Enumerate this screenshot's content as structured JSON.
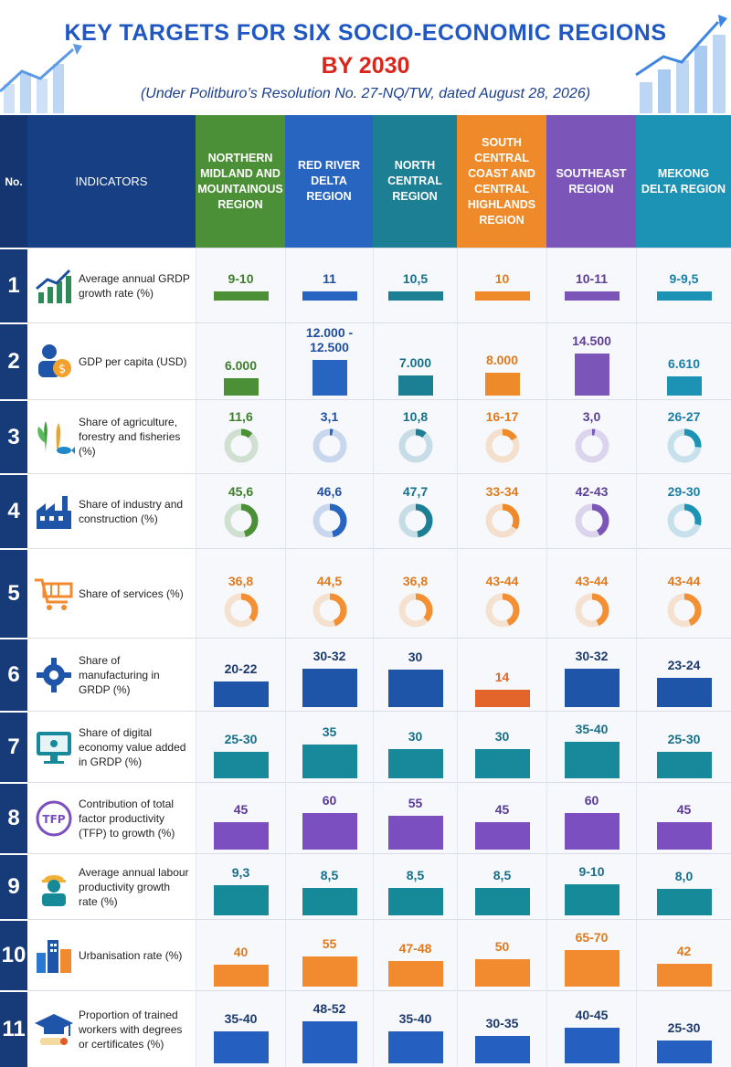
{
  "header": {
    "title": "KEY TARGETS FOR SIX SOCIO-ECONOMIC REGIONS",
    "subtitle": "BY 2030",
    "note": "(Under Politburo’s Resolution No. 27-NQ/TW, dated August 28, 2026)"
  },
  "table": {
    "no_label": "No.",
    "indicators_label": "INDICATORS"
  },
  "regions": [
    {
      "name": "NORTHERN MIDLAND AND MOUNTAINOUS REGION",
      "color": "#4b8f36",
      "value_color": "#3d7f2a"
    },
    {
      "name": "RED RIVER DELTA REGION",
      "color": "#2765c1",
      "value_color": "#1f4f9e"
    },
    {
      "name": "NORTH CENTRAL REGION",
      "color": "#1c7f94",
      "value_color": "#17708a"
    },
    {
      "name": "SOUTH CENTRAL COAST AND CENTRAL HIGHLANDS REGION",
      "color": "#ef8a2a",
      "value_color": "#e07a1c"
    },
    {
      "name": "SOUTHEAST REGION",
      "color": "#7b55b7",
      "value_color": "#5e3f98"
    },
    {
      "name": "MEKONG DELTA REGION",
      "color": "#1c92b5",
      "value_color": "#1a7fa6"
    }
  ],
  "rows": [
    {
      "no": "1",
      "icon": "growth-chart-icon",
      "label": "Average annual GRDP growth rate (%)",
      "type": "thinbar",
      "values": [
        "9-10",
        "11",
        "10,5",
        "10",
        "10-11",
        "9-9,5"
      ]
    },
    {
      "no": "2",
      "icon": "person-coin-icon",
      "label": "GDP per capita (USD)",
      "type": "bar",
      "values": [
        "6.000",
        "12.000 - 12.500",
        "7.000",
        "8.000",
        "14.500",
        "6.610"
      ],
      "numeric": [
        6000,
        12250,
        7000,
        8000,
        14500,
        6610
      ]
    },
    {
      "no": "3",
      "icon": "agriculture-fish-icon",
      "label": "Share of agriculture, forestry and fisheries (%)",
      "type": "donut",
      "values": [
        "11,6",
        "3,1",
        "10,8",
        "16-17",
        "3,0",
        "26-27"
      ],
      "numeric": [
        11.6,
        3.1,
        10.8,
        16.5,
        3.0,
        26.5
      ]
    },
    {
      "no": "4",
      "icon": "factory-icon",
      "label": "Share of industry and construction (%)",
      "type": "donut",
      "values": [
        "45,6",
        "46,6",
        "47,7",
        "33-34",
        "42-43",
        "29-30"
      ],
      "numeric": [
        45.6,
        46.6,
        47.7,
        33.5,
        42.5,
        29.5
      ]
    },
    {
      "no": "5",
      "icon": "shopping-cart-icon",
      "label": "Share of services (%)",
      "type": "donut",
      "values": [
        "36,8",
        "44,5",
        "36,8",
        "43-44",
        "43-44",
        "43-44"
      ],
      "numeric": [
        36.8,
        44.5,
        36.8,
        43.5,
        43.5,
        43.5
      ]
    },
    {
      "no": "6",
      "icon": "gear-icon",
      "label": "Share of manufacturing in GRDP (%)",
      "type": "bar",
      "values": [
        "20-22",
        "30-32",
        "30",
        "14",
        "30-32",
        "23-24"
      ],
      "numeric": [
        21,
        31,
        30,
        14,
        31,
        23.5
      ]
    },
    {
      "no": "7",
      "icon": "digital-monitor-icon",
      "label": "Share of digital economy value added in GRDP (%)",
      "type": "bar",
      "values": [
        "25-30",
        "35",
        "30",
        "30",
        "35-40",
        "25-30"
      ],
      "numeric": [
        27.5,
        35,
        30,
        30,
        37.5,
        27.5
      ]
    },
    {
      "no": "8",
      "icon": "tfp-icon",
      "label": "Contribution of total factor productivity (TFP) to growth (%)",
      "type": "bar",
      "values": [
        "45",
        "60",
        "55",
        "45",
        "60",
        "45"
      ],
      "numeric": [
        45,
        60,
        55,
        45,
        60,
        45
      ]
    },
    {
      "no": "9",
      "icon": "worker-icon",
      "label": "Average annual labour productivity growth rate (%)",
      "type": "bar",
      "values": [
        "9,3",
        "8,5",
        "8,5",
        "8,5",
        "9-10",
        "8,0"
      ],
      "numeric": [
        9.3,
        8.5,
        8.5,
        8.5,
        9.5,
        8.0
      ]
    },
    {
      "no": "10",
      "icon": "city-buildings-icon",
      "label": "Urbanisation rate (%)",
      "type": "bar",
      "values": [
        "40",
        "55",
        "47-48",
        "50",
        "65-70",
        "42"
      ],
      "numeric": [
        40,
        55,
        47.5,
        50,
        67.5,
        42
      ]
    },
    {
      "no": "11",
      "icon": "graduation-cap-icon",
      "label": "Proportion of trained workers with degrees or certificates (%)",
      "type": "bar",
      "values": [
        "35-40",
        "48-52",
        "35-40",
        "30-35",
        "40-45",
        "25-30"
      ],
      "numeric": [
        37.5,
        50,
        37.5,
        32.5,
        42.5,
        27.5
      ]
    }
  ],
  "row_colors": {
    "6": [
      "#1f55a8",
      "#1f55a8",
      "#1f55a8",
      "#e2642a",
      "#1f55a8",
      "#1f55a8"
    ],
    "7": [
      "#17899a",
      "#17899a",
      "#17899a",
      "#17899a",
      "#17899a",
      "#17899a"
    ],
    "8": [
      "#7b4fbf",
      "#7b4fbf",
      "#7b4fbf",
      "#7b4fbf",
      "#7b4fbf",
      "#7b4fbf"
    ],
    "9": [
      "#178a9a",
      "#178a9a",
      "#178a9a",
      "#178a9a",
      "#178a9a",
      "#178a9a"
    ],
    "10": [
      "#f28a30",
      "#f28a30",
      "#f28a30",
      "#f28a30",
      "#f28a30",
      "#f28a30"
    ],
    "11": [
      "#2560c0",
      "#2560c0",
      "#2560c0",
      "#2560c0",
      "#2560c0",
      "#2560c0"
    ],
    "donut5": [
      "#f29033",
      "#f29033",
      "#f29033",
      "#f29033",
      "#f29033",
      "#f29033"
    ]
  },
  "value_colors": {
    "6": "#1d3a6e",
    "7": "#17708a",
    "8": "#5a3a98",
    "9": "#17708a",
    "10": "#e07a1c",
    "11": "#1d3a6e",
    "5": "#e07a1c"
  }
}
